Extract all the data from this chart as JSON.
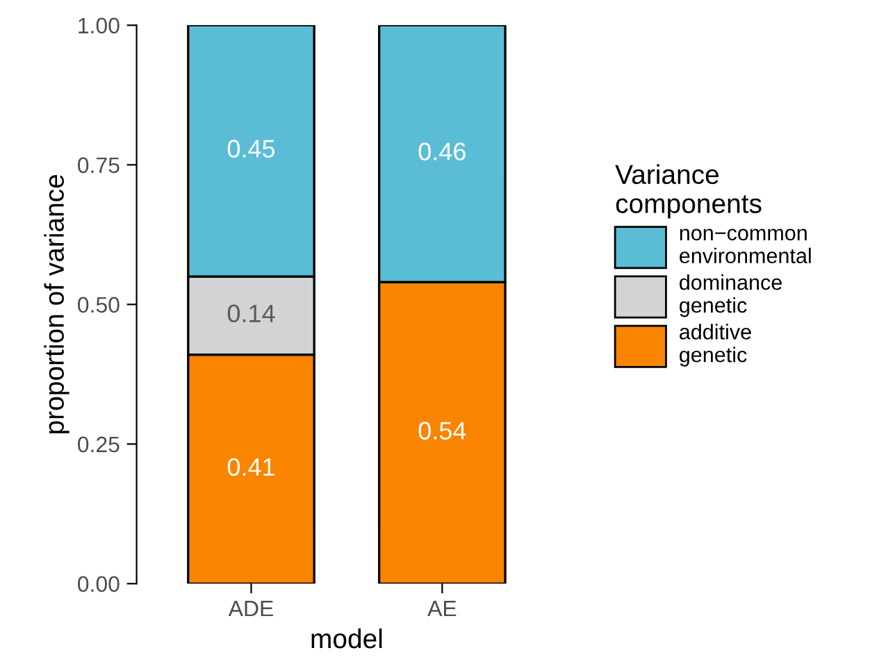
{
  "chart_data": {
    "type": "bar",
    "stacked": true,
    "xlabel": "model",
    "ylabel": "proportion of variance",
    "legend_title": "Variance\ncomponents",
    "legend": "right",
    "data_labels": true,
    "categories": [
      "ADE",
      "AE"
    ],
    "series": [
      {
        "name": "additive\ngenetic",
        "color": "#f98400",
        "values": [
          0.41,
          0.54
        ]
      },
      {
        "name": "dominance\ngenetic",
        "color": "#d3d3d3",
        "values": [
          0.14,
          null
        ]
      },
      {
        "name": "non−common\nenvironmental",
        "color": "#5bbcd6",
        "values": [
          0.45,
          0.46
        ]
      }
    ],
    "ylim": [
      0,
      1
    ],
    "yticks": [
      {
        "value": 0,
        "label": "0.00"
      },
      {
        "value": 0.25,
        "label": "0.25"
      },
      {
        "value": 0.5,
        "label": "0.50"
      },
      {
        "value": 0.75,
        "label": "0.75"
      },
      {
        "value": 1,
        "label": "1.00"
      }
    ],
    "grid": false
  }
}
